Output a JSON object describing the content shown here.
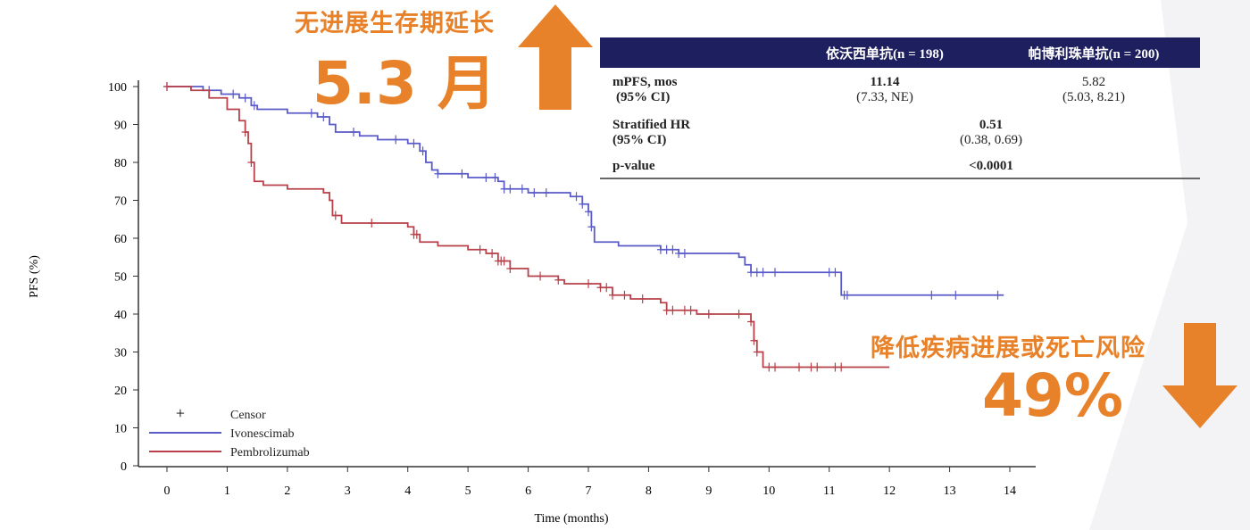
{
  "annotations": {
    "pfs_gain_text": "无进展生存期延长",
    "pfs_gain_value": "5.3 月",
    "risk_reduction_text": "降低疾病进展或死亡风险",
    "risk_reduction_value": "49%",
    "accent_color": "#E8822A",
    "up_arrow_icon": "arrow-up",
    "down_arrow_icon": "arrow-down"
  },
  "table": {
    "header": [
      "",
      "依沃西单抗(n = 198)",
      "帕博利珠单抗(n = 200)"
    ],
    "header_color": "#1e1f5e",
    "rows": [
      {
        "label1": "mPFS, mos",
        "label2": "(95% CI)",
        "v1": "11.14",
        "v1ci": "(7.33, NE)",
        "v2": "5.82",
        "v2ci": "(5.03, 8.21)"
      },
      {
        "label1": "Stratified HR",
        "label2": "(95% CI)",
        "v": "0.51",
        "vci": "(0.38, 0.69)"
      },
      {
        "label1": "p-value",
        "v": "<0.0001"
      }
    ]
  },
  "chart_data": {
    "type": "line",
    "subtype": "kaplan-meier step",
    "xlabel": "Time (months)",
    "ylabel": "PFS (%)",
    "xlim": [
      0,
      14
    ],
    "ylim": [
      0,
      100
    ],
    "xticks": [
      "0",
      "1",
      "2",
      "3",
      "4",
      "5",
      "6",
      "7",
      "8",
      "9",
      "10",
      "11",
      "12",
      "13",
      "14"
    ],
    "yticks": [
      "0",
      "10",
      "20",
      "30",
      "40",
      "50",
      "60",
      "70",
      "80",
      "90",
      "100"
    ],
    "grid": false,
    "legend": {
      "placement": "bottom-left",
      "censor_label": "Censor",
      "censor_symbol": "+"
    },
    "series": [
      {
        "name": "Ivonescimab",
        "color": "#5a5ac8",
        "steps": [
          [
            0,
            100
          ],
          [
            0.6,
            99
          ],
          [
            0.9,
            98
          ],
          [
            1.2,
            97
          ],
          [
            1.4,
            95
          ],
          [
            1.5,
            94
          ],
          [
            2.0,
            93
          ],
          [
            2.5,
            92
          ],
          [
            2.7,
            90
          ],
          [
            2.8,
            88
          ],
          [
            3.2,
            87
          ],
          [
            3.5,
            86
          ],
          [
            4.0,
            85
          ],
          [
            4.2,
            83
          ],
          [
            4.3,
            80
          ],
          [
            4.4,
            78
          ],
          [
            4.5,
            77
          ],
          [
            5.0,
            76
          ],
          [
            5.5,
            75
          ],
          [
            5.6,
            73
          ],
          [
            6.0,
            72
          ],
          [
            6.7,
            71
          ],
          [
            6.9,
            69
          ],
          [
            7.0,
            67
          ],
          [
            7.05,
            63
          ],
          [
            7.1,
            59
          ],
          [
            7.5,
            58
          ],
          [
            8.2,
            57
          ],
          [
            8.5,
            56
          ],
          [
            9.5,
            55
          ],
          [
            9.6,
            53
          ],
          [
            9.7,
            51
          ],
          [
            11.1,
            51
          ],
          [
            11.2,
            45
          ],
          [
            13.9,
            45
          ]
        ],
        "censor_times": [
          0,
          0.7,
          1.1,
          1.3,
          1.45,
          2.4,
          2.6,
          3.1,
          3.8,
          4.1,
          4.25,
          4.5,
          4.9,
          5.3,
          5.45,
          5.6,
          5.7,
          5.9,
          6.1,
          6.3,
          6.8,
          6.9,
          7.0,
          7.05,
          8.2,
          8.3,
          8.4,
          8.5,
          8.6,
          9.7,
          9.8,
          9.9,
          10.1,
          11.0,
          11.1,
          11.25,
          11.3,
          12.7,
          13.1,
          13.8
        ]
      },
      {
        "name": "Pembrolizumab",
        "color": "#b8404a",
        "steps": [
          [
            0,
            100
          ],
          [
            0.4,
            99
          ],
          [
            0.7,
            97
          ],
          [
            1.0,
            94
          ],
          [
            1.2,
            91
          ],
          [
            1.3,
            88
          ],
          [
            1.35,
            85
          ],
          [
            1.4,
            80
          ],
          [
            1.45,
            75
          ],
          [
            1.6,
            74
          ],
          [
            2.0,
            73
          ],
          [
            2.6,
            72
          ],
          [
            2.7,
            70
          ],
          [
            2.75,
            66
          ],
          [
            2.9,
            64
          ],
          [
            4.0,
            63
          ],
          [
            4.1,
            61
          ],
          [
            4.2,
            59
          ],
          [
            4.5,
            58
          ],
          [
            5.0,
            57
          ],
          [
            5.3,
            56
          ],
          [
            5.5,
            54
          ],
          [
            5.7,
            52
          ],
          [
            6.0,
            50
          ],
          [
            6.5,
            49
          ],
          [
            6.6,
            48
          ],
          [
            7.2,
            47
          ],
          [
            7.4,
            45
          ],
          [
            7.7,
            44
          ],
          [
            8.2,
            43
          ],
          [
            8.3,
            41
          ],
          [
            8.8,
            40
          ],
          [
            9.6,
            40
          ],
          [
            9.7,
            38
          ],
          [
            9.75,
            33
          ],
          [
            9.8,
            30
          ],
          [
            9.9,
            26
          ],
          [
            12.0,
            26
          ]
        ],
        "censor_times": [
          0,
          1.3,
          1.4,
          2.8,
          3.4,
          4.1,
          4.15,
          5.2,
          5.4,
          5.5,
          5.55,
          5.6,
          5.7,
          6.2,
          6.5,
          7.0,
          7.2,
          7.3,
          7.4,
          7.6,
          7.9,
          8.3,
          8.4,
          8.6,
          8.7,
          9.0,
          9.5,
          9.7,
          9.75,
          9.8,
          10.0,
          10.1,
          10.5,
          10.7,
          10.8,
          11.1,
          11.2
        ]
      }
    ]
  }
}
